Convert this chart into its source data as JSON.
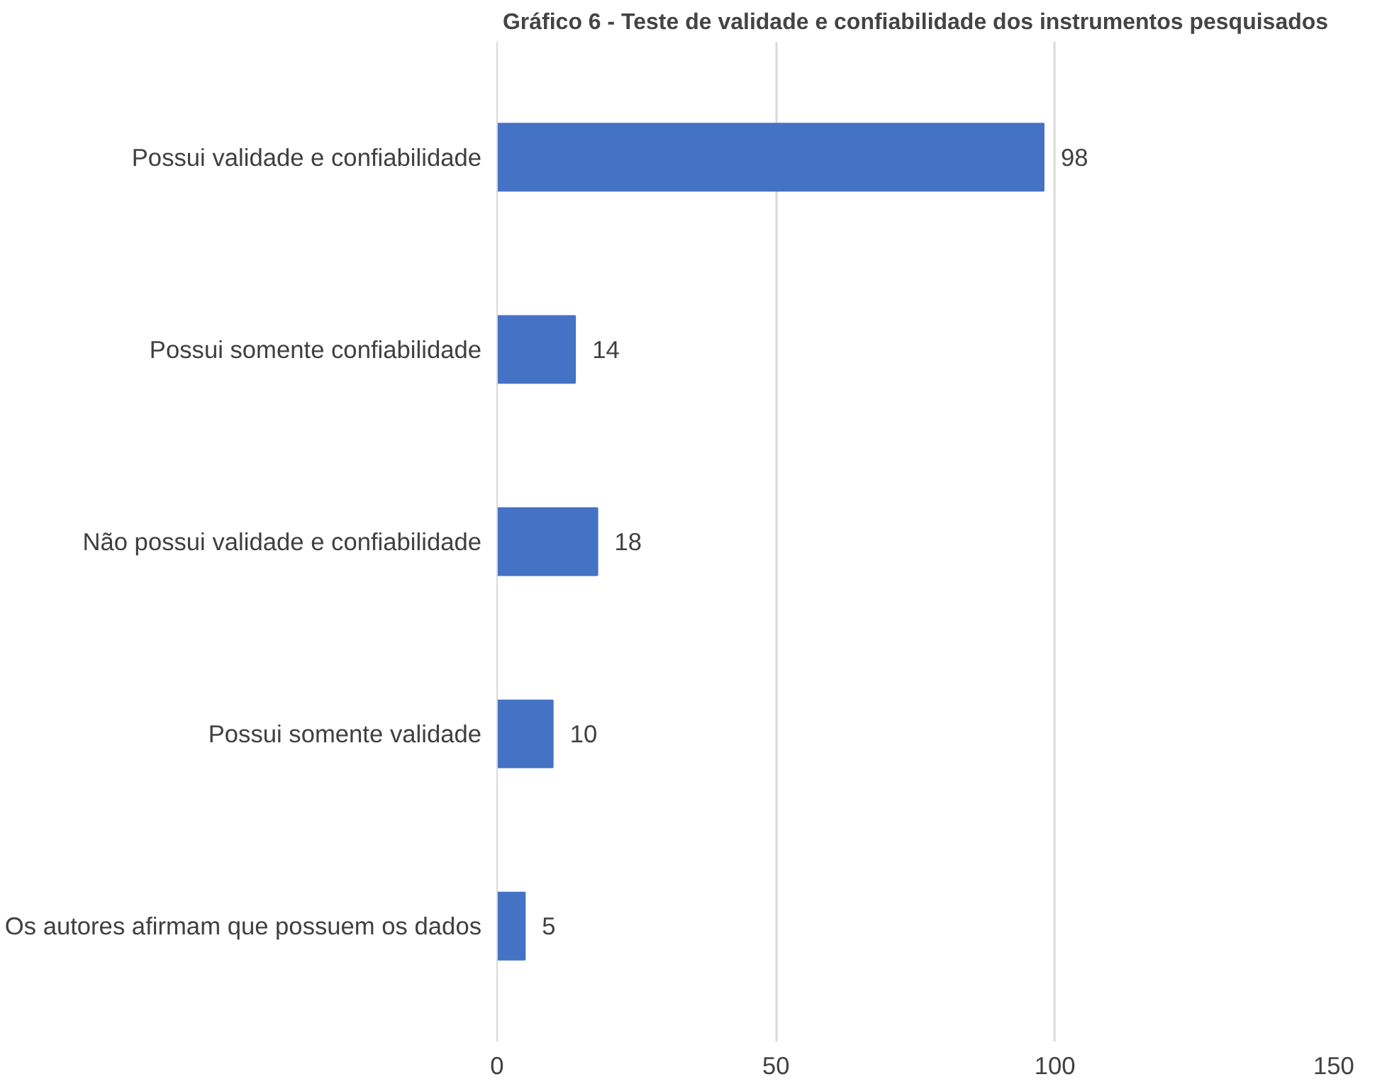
{
  "chart_data": {
    "type": "bar",
    "orientation": "horizontal",
    "title": "Gráfico 6 - Teste de validade e confiabilidade dos instrumentos pesquisados",
    "categories": [
      "Possui validade e confiabilidade",
      "Possui somente confiabilidade",
      "Não possui validade e confiabilidade",
      "Possui somente validade",
      "Os autores afirmam que possuem os dados"
    ],
    "values": [
      98,
      14,
      18,
      10,
      5
    ],
    "color": "#4472c4",
    "xlim": [
      0,
      150
    ],
    "xticks": [
      0,
      50,
      100,
      150
    ],
    "grid": "x",
    "data_labels": true
  }
}
